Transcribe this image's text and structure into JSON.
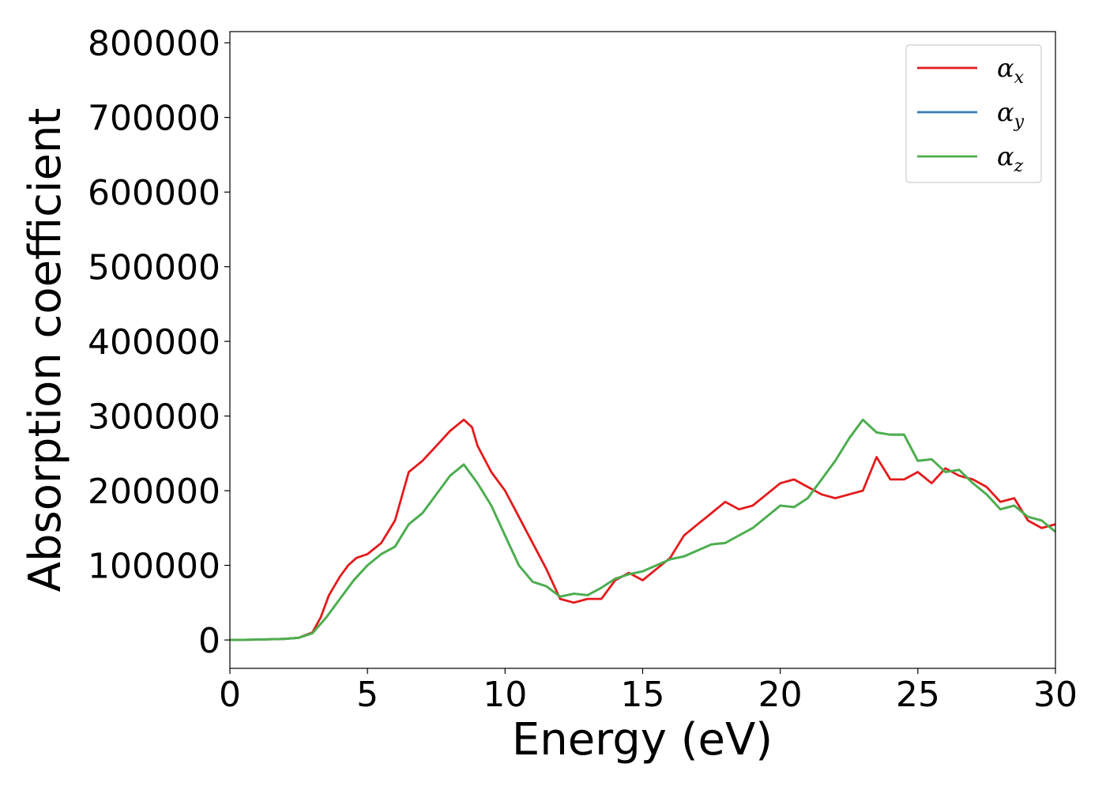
{
  "chart_data": {
    "type": "line",
    "title": "",
    "xlabel": "Energy (eV)",
    "ylabel": "Absorption coefficient",
    "xlim": [
      0,
      30
    ],
    "ylim": [
      -38000,
      815000
    ],
    "xticks": [
      "0",
      "5",
      "10",
      "15",
      "20",
      "25",
      "30"
    ],
    "yticks": [
      "0",
      "100000",
      "200000",
      "300000",
      "400000",
      "500000",
      "600000",
      "700000",
      "800000"
    ],
    "grid": false,
    "legend_position": "top-right",
    "series": [
      {
        "name": "α_x",
        "legend_base": "α",
        "legend_sub": "x",
        "color": "#e41a1c",
        "x": [
          0,
          1,
          2,
          2.5,
          3,
          3.3,
          3.6,
          4,
          4.3,
          4.6,
          5,
          5.5,
          6,
          6.5,
          7,
          7.5,
          8,
          8.5,
          8.8,
          9,
          9.5,
          10,
          10.5,
          11,
          11.5,
          12,
          12.5,
          13,
          13.5,
          14,
          14.5,
          15,
          15.5,
          16,
          16.5,
          17,
          17.5,
          18,
          18.5,
          19,
          19.5,
          20,
          20.5,
          21,
          21.5,
          22,
          22.5,
          23,
          23.5,
          24,
          24.5,
          25,
          25.5,
          26,
          26.5,
          27,
          27.5,
          28,
          28.5,
          29,
          29.5,
          30
        ],
        "y": [
          0,
          500,
          1500,
          3000,
          10000,
          30000,
          60000,
          85000,
          100000,
          110000,
          115000,
          130000,
          160000,
          225000,
          240000,
          260000,
          280000,
          295000,
          285000,
          260000,
          225000,
          200000,
          165000,
          130000,
          95000,
          55000,
          50000,
          55000,
          55000,
          80000,
          90000,
          80000,
          95000,
          110000,
          140000,
          155000,
          170000,
          185000,
          175000,
          180000,
          195000,
          210000,
          215000,
          205000,
          195000,
          190000,
          195000,
          200000,
          245000,
          215000,
          215000,
          225000,
          210000,
          230000,
          220000,
          215000,
          205000,
          185000,
          190000,
          160000,
          150000,
          155000
        ]
      },
      {
        "name": "α_y",
        "legend_base": "α",
        "legend_sub": "y",
        "color": "#377eb8",
        "x": [
          0,
          1,
          2,
          2.5,
          3,
          3.5,
          4,
          4.5,
          5,
          5.5,
          6,
          6.5,
          7,
          7.5,
          8,
          8.5,
          9,
          9.5,
          10,
          10.5,
          11,
          11.5,
          12,
          12.5,
          13,
          13.5,
          14,
          14.5,
          15,
          15.5,
          16,
          16.5,
          17,
          17.5,
          18,
          18.5,
          19,
          19.5,
          20,
          20.5,
          21,
          21.5,
          22,
          22.5,
          23,
          23.5,
          24,
          24.5,
          25,
          25.5,
          26,
          26.5,
          27,
          27.5,
          28,
          28.5,
          29,
          29.5,
          30
        ],
        "y": [
          0,
          500,
          1500,
          3000,
          9000,
          30000,
          55000,
          80000,
          100000,
          115000,
          125000,
          155000,
          170000,
          195000,
          220000,
          235000,
          210000,
          180000,
          140000,
          100000,
          78000,
          72000,
          58000,
          62000,
          60000,
          70000,
          82000,
          88000,
          92000,
          100000,
          108000,
          112000,
          120000,
          128000,
          130000,
          140000,
          150000,
          165000,
          180000,
          178000,
          190000,
          215000,
          240000,
          270000,
          295000,
          278000,
          275000,
          275000,
          240000,
          242000,
          225000,
          228000,
          210000,
          195000,
          175000,
          180000,
          165000,
          160000,
          145000
        ]
      },
      {
        "name": "α_z",
        "legend_base": "α",
        "legend_sub": "z",
        "color": "#4daf4a",
        "x": [
          0,
          1,
          2,
          2.5,
          3,
          3.5,
          4,
          4.5,
          5,
          5.5,
          6,
          6.5,
          7,
          7.5,
          8,
          8.5,
          9,
          9.5,
          10,
          10.5,
          11,
          11.5,
          12,
          12.5,
          13,
          13.5,
          14,
          14.5,
          15,
          15.5,
          16,
          16.5,
          17,
          17.5,
          18,
          18.5,
          19,
          19.5,
          20,
          20.5,
          21,
          21.5,
          22,
          22.5,
          23,
          23.5,
          24,
          24.5,
          25,
          25.5,
          26,
          26.5,
          27,
          27.5,
          28,
          28.5,
          29,
          29.5,
          30
        ],
        "y": [
          0,
          500,
          1500,
          3000,
          9000,
          30000,
          55000,
          80000,
          100000,
          115000,
          125000,
          155000,
          170000,
          195000,
          220000,
          235000,
          210000,
          180000,
          140000,
          100000,
          78000,
          72000,
          58000,
          62000,
          60000,
          70000,
          82000,
          88000,
          92000,
          100000,
          108000,
          112000,
          120000,
          128000,
          130000,
          140000,
          150000,
          165000,
          180000,
          178000,
          190000,
          215000,
          240000,
          270000,
          295000,
          278000,
          275000,
          275000,
          240000,
          242000,
          225000,
          228000,
          210000,
          195000,
          175000,
          180000,
          165000,
          160000,
          145000
        ]
      }
    ]
  }
}
